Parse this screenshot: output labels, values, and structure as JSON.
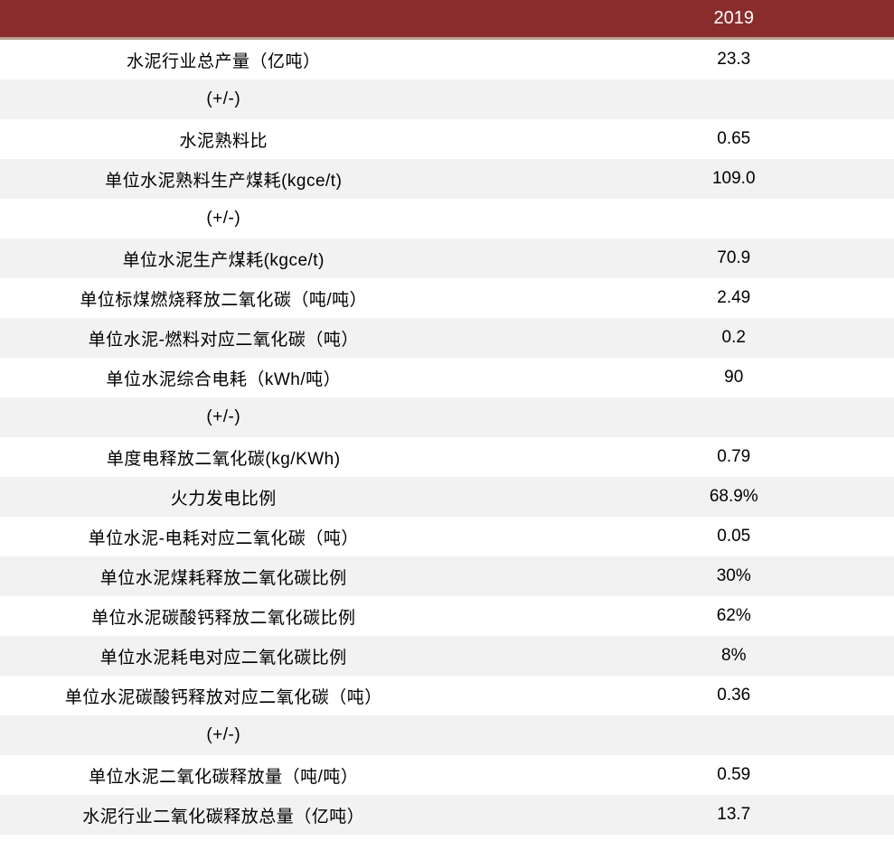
{
  "table": {
    "header": {
      "year": "2019"
    },
    "background_colors": {
      "header": "#8b2c2c",
      "odd": "#ffffff",
      "even": "#f2f2f2"
    },
    "text_colors": {
      "header": "#ffffff",
      "body": "#000000"
    },
    "font_sizes": {
      "header": 20,
      "body": 19
    },
    "rows": [
      {
        "label": "水泥行业总产量（亿吨）",
        "value": "23.3",
        "stripe": "odd"
      },
      {
        "label": "(+/-)",
        "value": "",
        "stripe": "even"
      },
      {
        "label": "水泥熟料比",
        "value": "0.65",
        "stripe": "odd"
      },
      {
        "label": "单位水泥熟料生产煤耗(kgce/t)",
        "value": "109.0",
        "stripe": "even"
      },
      {
        "label": "(+/-)",
        "value": "",
        "stripe": "odd"
      },
      {
        "label": "单位水泥生产煤耗(kgce/t)",
        "value": "70.9",
        "stripe": "even"
      },
      {
        "label": "单位标煤燃烧释放二氧化碳（吨/吨）",
        "value": "2.49",
        "stripe": "odd"
      },
      {
        "label": "单位水泥-燃料对应二氧化碳（吨）",
        "value": "0.2",
        "stripe": "even"
      },
      {
        "label": "单位水泥综合电耗（kWh/吨）",
        "value": "90",
        "stripe": "odd"
      },
      {
        "label": "(+/-)",
        "value": "",
        "stripe": "even"
      },
      {
        "label": "单度电释放二氧化碳(kg/KWh)",
        "value": "0.79",
        "stripe": "odd"
      },
      {
        "label": "火力发电比例",
        "value": "68.9%",
        "stripe": "even"
      },
      {
        "label": "单位水泥-电耗对应二氧化碳（吨）",
        "value": "0.05",
        "stripe": "odd"
      },
      {
        "label": "单位水泥煤耗释放二氧化碳比例",
        "value": "30%",
        "stripe": "even"
      },
      {
        "label": "单位水泥碳酸钙释放二氧化碳比例",
        "value": "62%",
        "stripe": "odd"
      },
      {
        "label": "单位水泥耗电对应二氧化碳比例",
        "value": "8%",
        "stripe": "even"
      },
      {
        "label": "单位水泥碳酸钙释放对应二氧化碳（吨）",
        "value": "0.36",
        "stripe": "odd"
      },
      {
        "label": "(+/-)",
        "value": "",
        "stripe": "even"
      },
      {
        "label": "单位水泥二氧化碳释放量（吨/吨）",
        "value": "0.59",
        "stripe": "odd"
      },
      {
        "label": "水泥行业二氧化碳释放总量（亿吨）",
        "value": "13.7",
        "stripe": "even"
      }
    ]
  }
}
